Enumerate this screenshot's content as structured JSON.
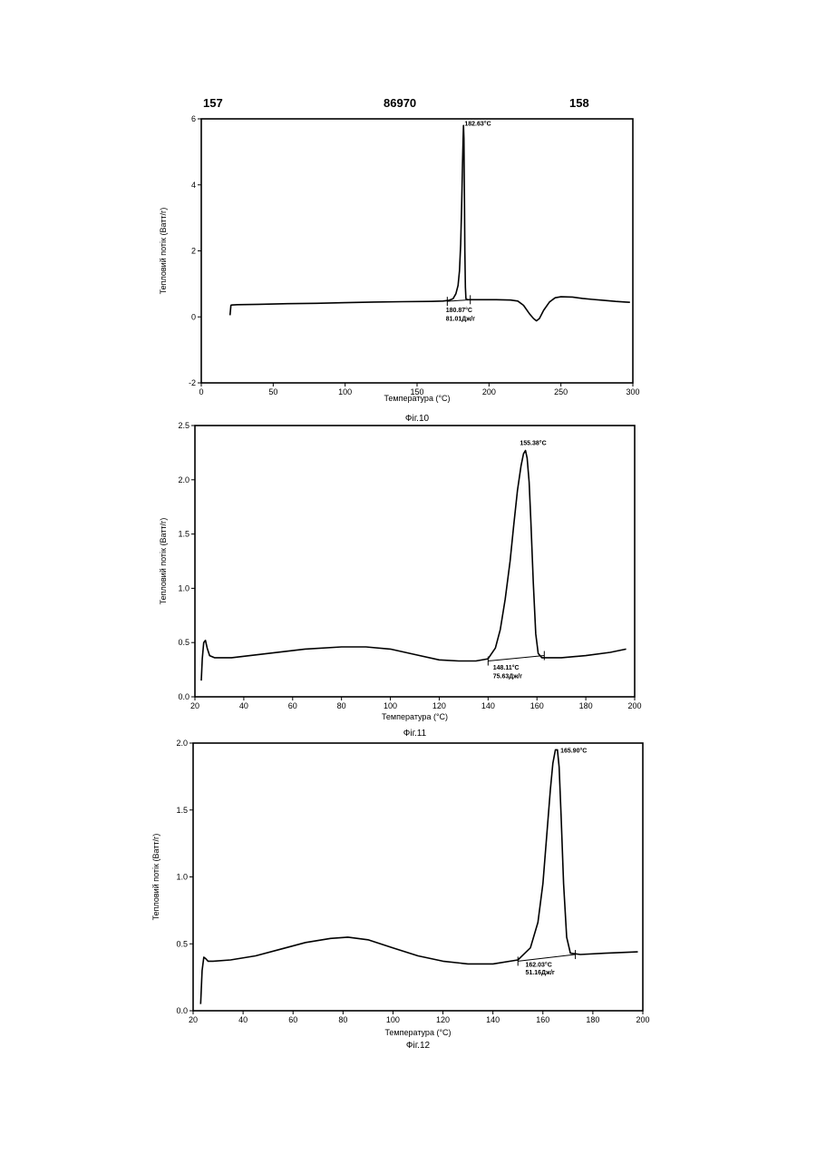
{
  "header": {
    "left": "157",
    "center": "86970",
    "right": "158"
  },
  "chart_data": [
    {
      "type": "line",
      "title": "",
      "figure_label": "Фіг.10",
      "xlabel": "Температура (°C)",
      "ylabel": "Тепловий потік (Ватт/г)",
      "xlim": [
        0,
        300
      ],
      "ylim": [
        -2,
        6
      ],
      "xticks": [
        0,
        50,
        100,
        150,
        200,
        250,
        300
      ],
      "xtick_labels": [
        "0",
        "50",
        "100",
        "150",
        "200",
        "250",
        "300"
      ],
      "yticks": [
        -2,
        0,
        2,
        4,
        6
      ],
      "ytick_labels": [
        "-2",
        "0",
        "2",
        "4",
        "6"
      ],
      "grid": false,
      "series": [
        {
          "x": [
            20,
            20.6,
            21,
            25,
            40,
            60,
            80,
            100,
            120,
            140,
            160,
            168,
            172,
            175,
            177,
            178.5,
            179.5,
            180.3,
            181,
            181.6,
            182,
            182.3,
            182.6,
            182.9,
            183.2,
            183.6,
            184,
            185,
            188,
            195,
            205,
            215,
            220,
            224,
            228,
            231,
            233,
            235,
            238,
            242,
            246,
            250,
            258,
            265,
            272,
            280,
            288,
            295,
            298
          ],
          "y": [
            0.05,
            0.35,
            0.36,
            0.37,
            0.38,
            0.4,
            0.41,
            0.43,
            0.45,
            0.46,
            0.47,
            0.48,
            0.5,
            0.55,
            0.7,
            0.95,
            1.4,
            2.2,
            3.4,
            4.6,
            5.4,
            5.8,
            5.4,
            3.8,
            2.0,
            0.9,
            0.55,
            0.52,
            0.52,
            0.52,
            0.52,
            0.51,
            0.48,
            0.35,
            0.1,
            -0.05,
            -0.12,
            -0.05,
            0.2,
            0.45,
            0.58,
            0.61,
            0.6,
            0.56,
            0.53,
            0.5,
            0.47,
            0.45,
            0.44
          ]
        }
      ],
      "baseline": {
        "x": [
          171,
          187
        ],
        "y": [
          0.47,
          0.52
        ]
      },
      "markers_x": [
        171,
        187
      ],
      "annotations": [
        {
          "text": "182.63°C",
          "x": 183,
          "y": 5.8
        },
        {
          "text": "180.87°C",
          "x": 170,
          "y": 0.15
        },
        {
          "text": "81.01Дж/г",
          "x": 170,
          "y": -0.12
        }
      ]
    },
    {
      "type": "line",
      "title": "",
      "figure_label": "Фіг.11",
      "xlabel": "Температура (°C)",
      "ylabel": "Тепловий потік (Ватт/г)",
      "xlim": [
        20,
        200
      ],
      "ylim": [
        0.0,
        2.5
      ],
      "xticks": [
        20,
        40,
        60,
        80,
        100,
        120,
        140,
        160,
        180,
        200
      ],
      "xtick_labels": [
        "20",
        "40",
        "60",
        "80",
        "100",
        "120",
        "140",
        "160",
        "180",
        "200"
      ],
      "yticks": [
        0.0,
        0.5,
        1.0,
        1.5,
        2.0,
        2.5
      ],
      "ytick_labels": [
        "0.0",
        "0.5",
        "1.0",
        "1.5",
        "2.0",
        "2.5"
      ],
      "grid": false,
      "series": [
        {
          "x": [
            22.6,
            23,
            23.6,
            24.3,
            25,
            26,
            28,
            35,
            50,
            65,
            80,
            90,
            100,
            110,
            120,
            128,
            135,
            140,
            143,
            145,
            147,
            149,
            150.5,
            152,
            153.5,
            154.5,
            155.3,
            156,
            156.8,
            157.5,
            158.5,
            159.5,
            160.5,
            162,
            170,
            180,
            190,
            196.5
          ],
          "y": [
            0.15,
            0.35,
            0.5,
            0.52,
            0.45,
            0.38,
            0.36,
            0.36,
            0.4,
            0.44,
            0.46,
            0.46,
            0.44,
            0.39,
            0.34,
            0.33,
            0.33,
            0.35,
            0.45,
            0.62,
            0.9,
            1.25,
            1.58,
            1.9,
            2.13,
            2.24,
            2.27,
            2.2,
            1.98,
            1.62,
            1.05,
            0.58,
            0.4,
            0.36,
            0.36,
            0.38,
            0.41,
            0.44
          ]
        }
      ],
      "baseline": {
        "x": [
          140,
          163
        ],
        "y": [
          0.33,
          0.38
        ]
      },
      "markers_x": [
        140,
        163
      ],
      "annotations": [
        {
          "text": "155.38°C",
          "x": 153,
          "y": 2.32
        },
        {
          "text": "148.11°C",
          "x": 142,
          "y": 0.25
        },
        {
          "text": "75.63Дж/г",
          "x": 142,
          "y": 0.17
        }
      ]
    },
    {
      "type": "line",
      "title": "",
      "figure_label": "Фіг.12",
      "xlabel": "Температура (°C)",
      "ylabel": "Тепловий потік (Ватт/г)",
      "xlim": [
        20,
        200
      ],
      "ylim": [
        0.0,
        2.0
      ],
      "xticks": [
        20,
        40,
        60,
        80,
        100,
        120,
        140,
        160,
        180,
        200
      ],
      "xtick_labels": [
        "20",
        "40",
        "60",
        "80",
        "100",
        "120",
        "140",
        "160",
        "180",
        "200"
      ],
      "yticks": [
        0.0,
        0.5,
        1.0,
        1.5,
        2.0
      ],
      "yticks_labels_note": "",
      "ytick_labels": [
        "0.0",
        "0.5",
        "1.0",
        "1.5",
        "2.0"
      ],
      "grid": false,
      "series": [
        {
          "x": [
            23,
            23.6,
            24.3,
            25,
            26,
            28,
            35,
            45,
            55,
            65,
            75,
            82,
            90,
            100,
            110,
            120,
            130,
            140,
            150,
            155,
            158,
            160,
            161.5,
            163,
            164,
            165,
            165.8,
            166.5,
            167.3,
            168.3,
            169.5,
            171,
            175,
            185,
            198
          ],
          "y": [
            0.05,
            0.3,
            0.4,
            0.39,
            0.37,
            0.37,
            0.38,
            0.41,
            0.46,
            0.51,
            0.54,
            0.55,
            0.53,
            0.47,
            0.41,
            0.37,
            0.35,
            0.35,
            0.38,
            0.47,
            0.66,
            0.95,
            1.3,
            1.65,
            1.85,
            1.95,
            1.95,
            1.82,
            1.45,
            0.95,
            0.55,
            0.43,
            0.42,
            0.43,
            0.44
          ]
        }
      ],
      "baseline": {
        "x": [
          150,
          173
        ],
        "y": [
          0.37,
          0.42
        ]
      },
      "markers_x": [
        150,
        173
      ],
      "annotations": [
        {
          "text": "165.90°C",
          "x": 167,
          "y": 1.93
        },
        {
          "text": "162.03°C",
          "x": 153,
          "y": 0.33
        },
        {
          "text": "51.16Дж/г",
          "x": 153,
          "y": 0.27
        }
      ]
    }
  ]
}
